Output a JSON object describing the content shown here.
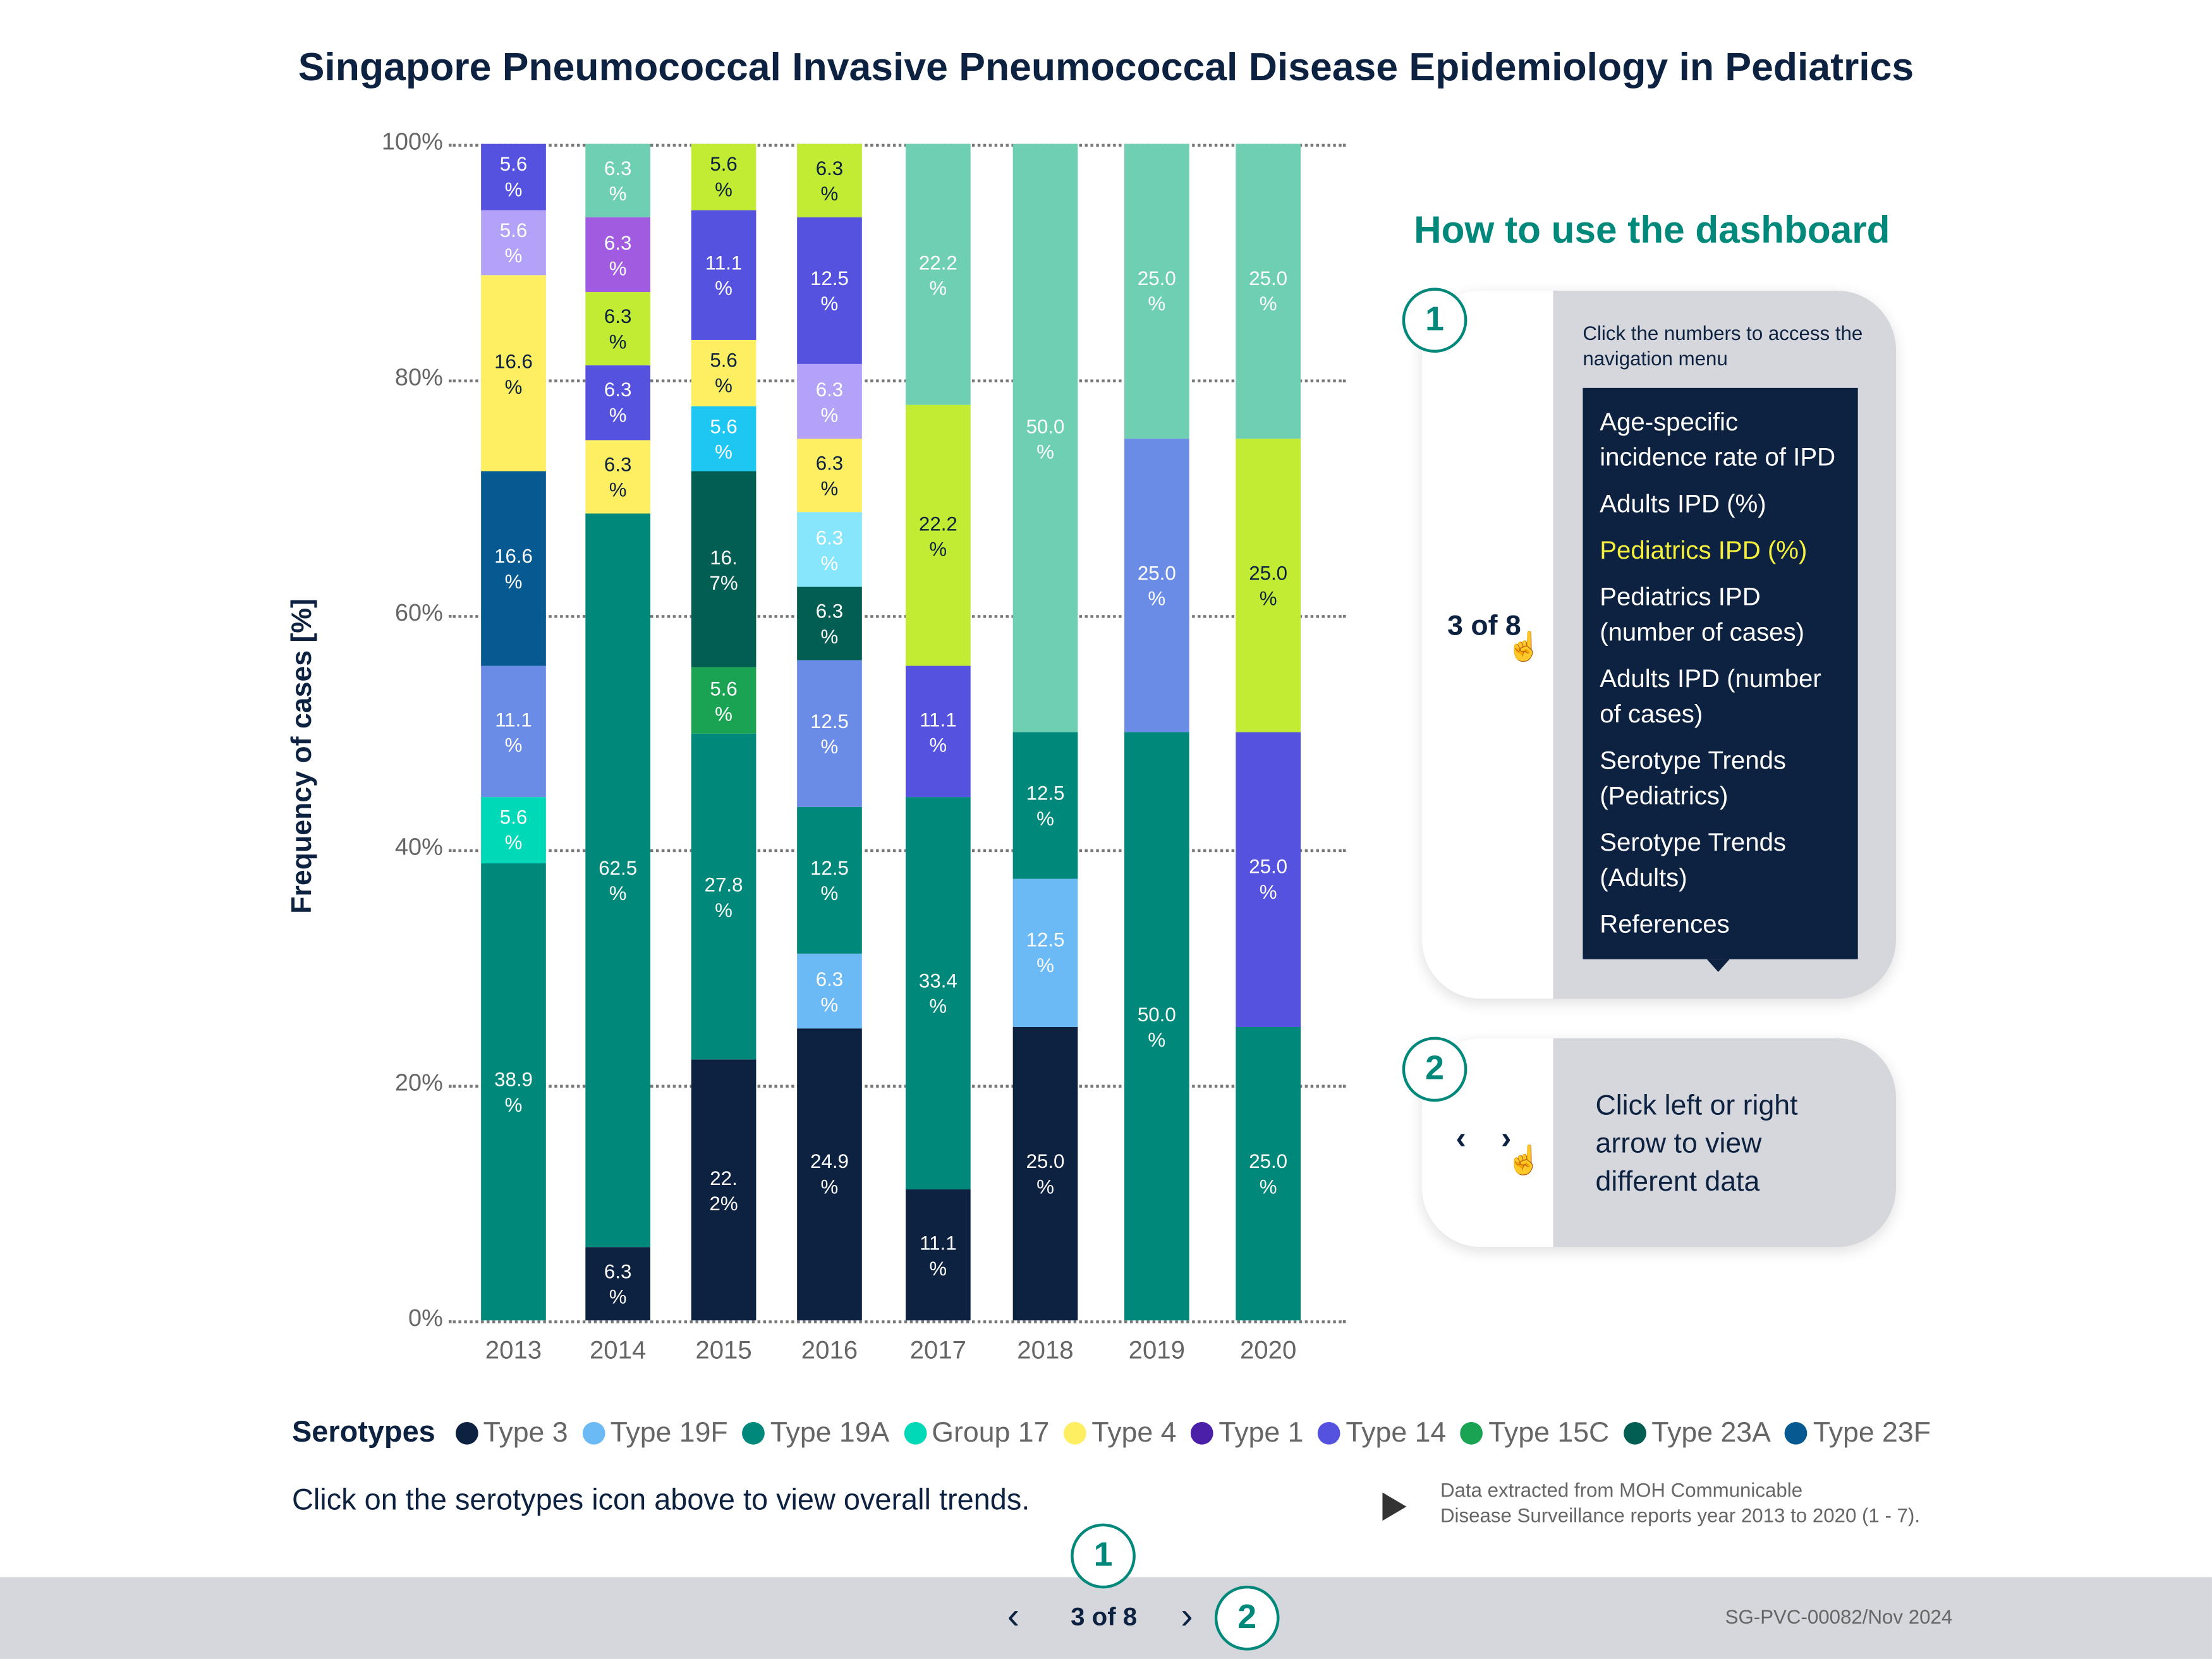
{
  "title": "Singapore Pneumococcal Invasive Pneumococcal Disease Epidemiology in Pediatrics",
  "chart_data": {
    "type": "bar",
    "stacked": true,
    "ylabel": "Frequency of cases [%]",
    "ylim": [
      0,
      100
    ],
    "yticks": [
      "0%",
      "20%",
      "40%",
      "60%",
      "80%",
      "100%"
    ],
    "grid": true,
    "categories": [
      "2013",
      "2014",
      "2015",
      "2016",
      "2017",
      "2018",
      "2019",
      "2020"
    ],
    "stacks": [
      [
        {
          "v": 38.9,
          "c": "#00897b",
          "l": "38.9\n%"
        },
        {
          "v": 5.6,
          "c": "#00d9b8",
          "l": "5.6\n%"
        },
        {
          "v": 11.1,
          "c": "#6a8ce6",
          "l": "11.1\n%"
        },
        {
          "v": 16.6,
          "c": "#075a91",
          "l": "16.6\n%"
        },
        {
          "v": 16.6,
          "c": "#fdee62",
          "l": "16.6\n%",
          "d": 1
        },
        {
          "v": 5.6,
          "c": "#b3a2f8",
          "l": "5.6\n%"
        },
        {
          "v": 5.6,
          "c": "#5552e0",
          "l": "5.6\n%"
        }
      ],
      [
        {
          "v": 6.3,
          "c": "#0d2240",
          "l": "6.3\n%"
        },
        {
          "v": 62.5,
          "c": "#00897b",
          "l": "62.5\n%"
        },
        {
          "v": 6.3,
          "c": "#fdee62",
          "l": "6.3\n%",
          "d": 1
        },
        {
          "v": 6.3,
          "c": "#5552e0",
          "l": "6.3\n%"
        },
        {
          "v": 6.3,
          "c": "#c2ec33",
          "l": "6.3\n%",
          "d": 1
        },
        {
          "v": 6.3,
          "c": "#a05be0",
          "l": "6.3\n%"
        },
        {
          "v": 6.3,
          "c": "#6ecfb3",
          "l": "6.3\n%"
        }
      ],
      [
        {
          "v": 22.2,
          "c": "#0d2240",
          "l": "22.\n2%"
        },
        {
          "v": 27.8,
          "c": "#00897b",
          "l": "27.8\n%"
        },
        {
          "v": 5.6,
          "c": "#1aa352",
          "l": "5.6\n%"
        },
        {
          "v": 16.7,
          "c": "#025e52",
          "l": "16.\n7%"
        },
        {
          "v": 5.6,
          "c": "#1ec6f2",
          "l": "5.6\n%"
        },
        {
          "v": 5.6,
          "c": "#fdee62",
          "l": "5.6\n%",
          "d": 1
        },
        {
          "v": 11.1,
          "c": "#5552e0",
          "l": "11.1\n%"
        },
        {
          "v": 5.6,
          "c": "#c2ec33",
          "l": "5.6\n%",
          "d": 1
        }
      ],
      [
        {
          "v": 24.9,
          "c": "#0d2240",
          "l": "24.9\n%"
        },
        {
          "v": 6.3,
          "c": "#6bb9f5",
          "l": "6.3\n%"
        },
        {
          "v": 12.5,
          "c": "#00897b",
          "l": "12.5\n%"
        },
        {
          "v": 12.5,
          "c": "#6a8ce6",
          "l": "12.5\n%"
        },
        {
          "v": 6.3,
          "c": "#025e52",
          "l": "6.3\n%"
        },
        {
          "v": 6.3,
          "c": "#86e6fb",
          "l": "6.3\n%"
        },
        {
          "v": 6.3,
          "c": "#fdee62",
          "l": "6.3\n%",
          "d": 1
        },
        {
          "v": 6.3,
          "c": "#b3a2f8",
          "l": "6.3\n%"
        },
        {
          "v": 12.5,
          "c": "#5552e0",
          "l": "12.5\n%"
        },
        {
          "v": 6.3,
          "c": "#c2ec33",
          "l": "6.3\n%",
          "d": 1
        }
      ],
      [
        {
          "v": 11.1,
          "c": "#0d2240",
          "l": "11.1\n%"
        },
        {
          "v": 33.4,
          "c": "#00897b",
          "l": "33.4\n%"
        },
        {
          "v": 11.1,
          "c": "#5552e0",
          "l": "11.1\n%"
        },
        {
          "v": 22.2,
          "c": "#c2ec33",
          "l": "22.2\n%",
          "d": 1
        },
        {
          "v": 22.2,
          "c": "#6ecfb3",
          "l": "22.2\n%"
        }
      ],
      [
        {
          "v": 25.0,
          "c": "#0d2240",
          "l": "25.0\n%"
        },
        {
          "v": 12.5,
          "c": "#6bb9f5",
          "l": "12.5\n%"
        },
        {
          "v": 12.5,
          "c": "#00897b",
          "l": "12.5\n%"
        },
        {
          "v": 50.0,
          "c": "#6ecfb3",
          "l": "50.0\n%"
        }
      ],
      [
        {
          "v": 50.0,
          "c": "#00897b",
          "l": "50.0\n%"
        },
        {
          "v": 25.0,
          "c": "#6a8ce6",
          "l": "25.0\n%"
        },
        {
          "v": 25.0,
          "c": "#6ecfb3",
          "l": "25.0\n%"
        }
      ],
      [
        {
          "v": 25.0,
          "c": "#00897b",
          "l": "25.0\n%"
        },
        {
          "v": 25.0,
          "c": "#5552e0",
          "l": "25.0\n%"
        },
        {
          "v": 25.0,
          "c": "#c2ec33",
          "l": "25.0\n%",
          "d": 1
        },
        {
          "v": 25.0,
          "c": "#6ecfb3",
          "l": "25.0\n%"
        }
      ]
    ],
    "legend": {
      "title": "Serotypes",
      "items": [
        {
          "name": "Type 3",
          "color": "#0d2240"
        },
        {
          "name": "Type 19F",
          "color": "#6bb9f5"
        },
        {
          "name": "Type 19A",
          "color": "#00897b"
        },
        {
          "name": "Group 17",
          "color": "#00d9b8"
        },
        {
          "name": "Type 4",
          "color": "#fdee62"
        },
        {
          "name": "Type 1",
          "color": "#4b1fa8"
        },
        {
          "name": "Type 14",
          "color": "#5552e0"
        },
        {
          "name": "Type 15C",
          "color": "#1aa352"
        },
        {
          "name": "Type 23A",
          "color": "#025e52"
        },
        {
          "name": "Type 23F",
          "color": "#075a91"
        }
      ]
    }
  },
  "hint": "Click on the serotypes icon above to view overall trends.",
  "source_note": [
    "Data extracted from MOH Communicable",
    "Disease Surveillance reports year 2013 to 2020 (1 - 7)."
  ],
  "howto": {
    "title": "How to use the dashboard",
    "step1": {
      "number": "1",
      "page": "3 of 8",
      "text": "Click the numbers to access the navigation menu",
      "menu": [
        "Age-specific incidence rate of IPD",
        "Adults IPD (%)",
        "Pediatrics IPD (%)",
        "Pediatrics IPD (number of cases)",
        "Adults IPD (number of cases)",
        "Serotype Trends (Pediatrics)",
        "Serotype Trends (Adults)",
        "References"
      ],
      "active_index": 2
    },
    "step2": {
      "number": "2",
      "text": "Click left or right arrow to view different data"
    }
  },
  "footer": {
    "page": "3 of 8",
    "badge1": "1",
    "badge2": "2",
    "code": "SG-PVC-00082/Nov 2024"
  },
  "colors": {
    "navy": "#0d2240",
    "teal": "#00897b",
    "active_menu": "#f5ef3d",
    "panel_gray": "#d5d7dc"
  }
}
